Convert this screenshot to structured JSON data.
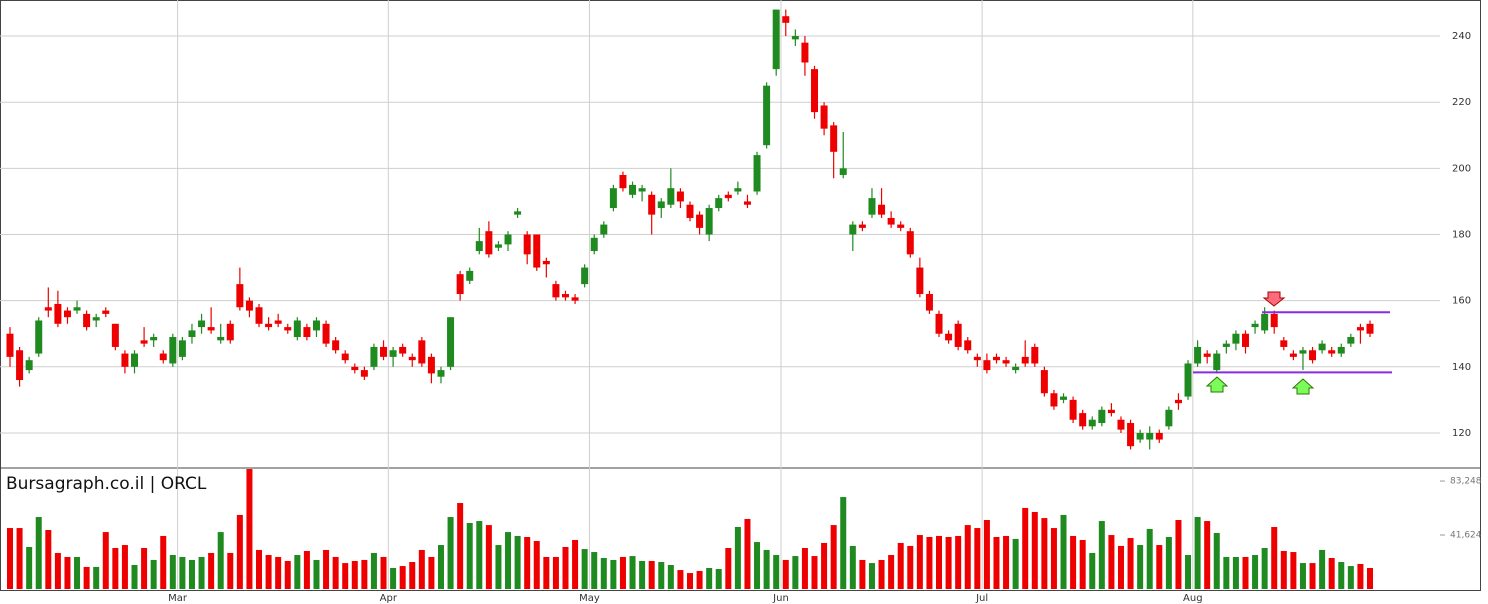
{
  "chart_data": {
    "type": "candlestick",
    "title": "Bursagraph.co.il | ORCL",
    "categories": [
      null,
      null,
      null,
      null,
      null,
      null,
      null,
      null,
      null,
      null,
      null,
      null,
      null,
      null,
      null,
      null,
      null,
      null,
      "Mar",
      null,
      null,
      null,
      null,
      null,
      null,
      null,
      null,
      null,
      null,
      null,
      null,
      null,
      null,
      null,
      null,
      null,
      null,
      null,
      null,
      null,
      "Apr",
      null,
      null,
      null,
      null,
      null,
      null,
      null,
      null,
      null,
      null,
      null,
      null,
      null,
      null,
      null,
      null,
      null,
      null,
      null,
      null,
      "May",
      null,
      null,
      null,
      null,
      null,
      null,
      null,
      null,
      null,
      null,
      null,
      null,
      null,
      null,
      null,
      null,
      null,
      null,
      null,
      "Jun",
      null,
      null,
      null,
      null,
      null,
      null,
      null,
      null,
      null,
      null,
      null,
      null,
      null,
      null,
      null,
      null,
      null,
      null,
      null,
      null,
      "Jul",
      null,
      null,
      null,
      null,
      null,
      null,
      null,
      null,
      null,
      null,
      null,
      null,
      null,
      null,
      null,
      null,
      null,
      null,
      null,
      null,
      null,
      "Aug",
      null,
      null,
      null,
      null,
      null,
      null,
      null,
      null,
      null,
      null,
      null,
      null,
      null,
      null,
      null,
      null,
      null,
      null
    ],
    "open": [
      150,
      145,
      139,
      144,
      158,
      159,
      157,
      157,
      156,
      154,
      157,
      153,
      144,
      140,
      148,
      148,
      144,
      141,
      143,
      149,
      152,
      152,
      148,
      153,
      165,
      160,
      158,
      153,
      154,
      152,
      149,
      152,
      151,
      153,
      148,
      144,
      140,
      139,
      140,
      146,
      143,
      146,
      143,
      148,
      143,
      137,
      140,
      168,
      166,
      175,
      181,
      176,
      177,
      186,
      180,
      180,
      172,
      165,
      162,
      161,
      165,
      175,
      180,
      188,
      198,
      192,
      193,
      192,
      188,
      189,
      193,
      189,
      186,
      180,
      188,
      192,
      193,
      190,
      193,
      207,
      230,
      246,
      239,
      238,
      230,
      219,
      213,
      198,
      180,
      183,
      186,
      189,
      185,
      183,
      181,
      170,
      162,
      156,
      150,
      153,
      148,
      143,
      142,
      143,
      142,
      139,
      143,
      146,
      139,
      132,
      130,
      130,
      126,
      122,
      123,
      127,
      124,
      123,
      118,
      118,
      120,
      122,
      130,
      131,
      141,
      144,
      139,
      146,
      147,
      150,
      152,
      151,
      156,
      148,
      144,
      144,
      145,
      145,
      145,
      144,
      147,
      152,
      153
    ],
    "close": [
      143,
      136,
      142,
      154,
      157,
      153,
      155,
      158,
      152,
      155,
      156,
      146,
      140,
      144,
      147,
      149,
      142,
      149,
      148,
      151,
      154,
      151,
      149,
      148,
      158,
      157,
      153,
      152,
      153,
      151,
      154,
      149,
      154,
      147,
      145,
      142,
      139,
      137,
      146,
      143,
      145,
      144,
      142,
      141,
      138,
      139,
      155,
      162,
      169,
      178,
      174,
      177,
      180,
      187,
      174,
      170,
      171,
      161,
      161,
      160,
      170,
      179,
      183,
      194,
      194,
      195,
      194,
      186,
      190,
      194,
      190,
      185,
      182,
      188,
      191,
      191,
      194,
      189,
      204,
      225,
      248,
      244,
      240,
      232,
      217,
      212,
      205,
      200,
      183,
      182,
      191,
      186,
      183,
      182,
      174,
      162,
      157,
      150,
      148,
      146,
      145,
      142,
      139,
      142,
      141,
      140,
      141,
      141,
      132,
      128,
      131,
      124,
      122,
      124,
      127,
      126,
      121,
      116,
      120,
      120,
      118,
      127,
      129,
      141,
      146,
      143,
      144,
      147,
      150,
      146,
      153,
      156,
      152,
      146,
      143,
      145,
      142,
      147,
      144,
      146,
      149,
      151,
      150
    ],
    "high": [
      152,
      146,
      143,
      155,
      164,
      163,
      158,
      160,
      157,
      156,
      158,
      153,
      145,
      145,
      152,
      150,
      145,
      150,
      149,
      153,
      156,
      158,
      153,
      154,
      170,
      161,
      159,
      155,
      156,
      153,
      155,
      153,
      155,
      154,
      149,
      145,
      141,
      140,
      147,
      148,
      146,
      147,
      144,
      149,
      144,
      140,
      155,
      169,
      170,
      182,
      184,
      178,
      181,
      188,
      181,
      180,
      173,
      166,
      163,
      162,
      171,
      180,
      184,
      195,
      199,
      196,
      195,
      193,
      191,
      200,
      194,
      190,
      187,
      189,
      192,
      193,
      196,
      192,
      205,
      226,
      248,
      248,
      242,
      240,
      231,
      220,
      214,
      211,
      184,
      184,
      194,
      194,
      187,
      184,
      182,
      173,
      163,
      157,
      151,
      154,
      149,
      144,
      144,
      144,
      143,
      141,
      148,
      147,
      140,
      133,
      132,
      131,
      127,
      125,
      128,
      129,
      125,
      124,
      121,
      122,
      121,
      128,
      132,
      142,
      148,
      145,
      145,
      148,
      151,
      151,
      154,
      158,
      157,
      149,
      145,
      146,
      146,
      148,
      146,
      147,
      150,
      153,
      154
    ],
    "low": [
      140,
      134,
      138,
      143,
      155,
      152,
      153,
      156,
      151,
      152,
      155,
      145,
      138,
      138,
      146,
      146,
      141,
      140,
      142,
      147,
      150,
      150,
      147,
      147,
      157,
      155,
      152,
      151,
      152,
      150,
      148,
      148,
      149,
      146,
      144,
      141,
      138,
      136,
      139,
      142,
      140,
      143,
      140,
      140,
      135,
      135,
      139,
      160,
      165,
      174,
      173,
      175,
      175,
      185,
      171,
      169,
      167,
      160,
      160,
      159,
      164,
      174,
      179,
      187,
      193,
      191,
      190,
      180,
      185,
      188,
      188,
      184,
      180,
      178,
      187,
      190,
      192,
      188,
      192,
      206,
      228,
      240,
      237,
      228,
      215,
      210,
      197,
      197,
      175,
      181,
      185,
      185,
      182,
      181,
      173,
      161,
      156,
      149,
      147,
      145,
      144,
      140,
      138,
      141,
      140,
      138,
      140,
      140,
      131,
      127,
      129,
      123,
      121,
      121,
      122,
      125,
      120,
      115,
      117,
      115,
      117,
      121,
      127,
      130,
      140,
      141,
      138,
      144,
      145,
      144,
      150,
      150,
      150,
      145,
      142,
      139,
      141,
      144,
      143,
      143,
      146,
      147,
      149
    ],
    "volume": [
      47000,
      47000,
      32400,
      55500,
      45500,
      27800,
      24700,
      24700,
      17000,
      17000,
      43900,
      31600,
      33900,
      18500,
      31600,
      22400,
      40900,
      26200,
      24700,
      22400,
      24700,
      27800,
      43900,
      27800,
      57100,
      92500,
      30100,
      26200,
      24700,
      21600,
      26200,
      29300,
      22400,
      30100,
      24700,
      20000,
      21600,
      22400,
      27800,
      24700,
      16200,
      17700,
      20800,
      30100,
      24700,
      33900,
      55500,
      66300,
      50900,
      52400,
      49300,
      33900,
      43900,
      40900,
      40100,
      37000,
      24700,
      24700,
      32400,
      37800,
      30800,
      28500,
      23900,
      22400,
      24700,
      25400,
      21600,
      21600,
      20800,
      18500,
      14600,
      12300,
      13900,
      16200,
      15400,
      31600,
      47800,
      54000,
      36200,
      30100,
      26200,
      22400,
      25400,
      31600,
      25400,
      35500,
      49300,
      70900,
      33200,
      22400,
      20000,
      22400,
      26200,
      35500,
      33200,
      41600,
      40100,
      40900,
      40100,
      40900,
      49300,
      47000,
      53200,
      40100,
      40900,
      38600,
      62500,
      59400,
      54700,
      47000,
      57100,
      40900,
      37800,
      27800,
      52400,
      41600,
      33200,
      39300,
      33900,
      46300,
      33900,
      40100,
      53200,
      26200,
      55500,
      52400,
      43200,
      24700,
      24700,
      24700,
      26200,
      31600,
      47800,
      29300,
      28500,
      20000,
      20000,
      30100,
      23900,
      20800,
      17700,
      19300,
      16200
    ],
    "ylim": [
      109.4,
      250.9
    ],
    "yticks": [
      120,
      140,
      160,
      180,
      200,
      220,
      240
    ],
    "volume_ylim": [
      0,
      93300
    ],
    "volume_yticks": [
      {
        "value": 41624,
        "label": "41,624"
      },
      {
        "value": 83248,
        "label": "83,248"
      }
    ],
    "up_color": "#1f8a1f",
    "down_color": "#ee0000",
    "grid": true,
    "levels": [
      156.5,
      138.3
    ],
    "level_color": "#8a2be2"
  }
}
